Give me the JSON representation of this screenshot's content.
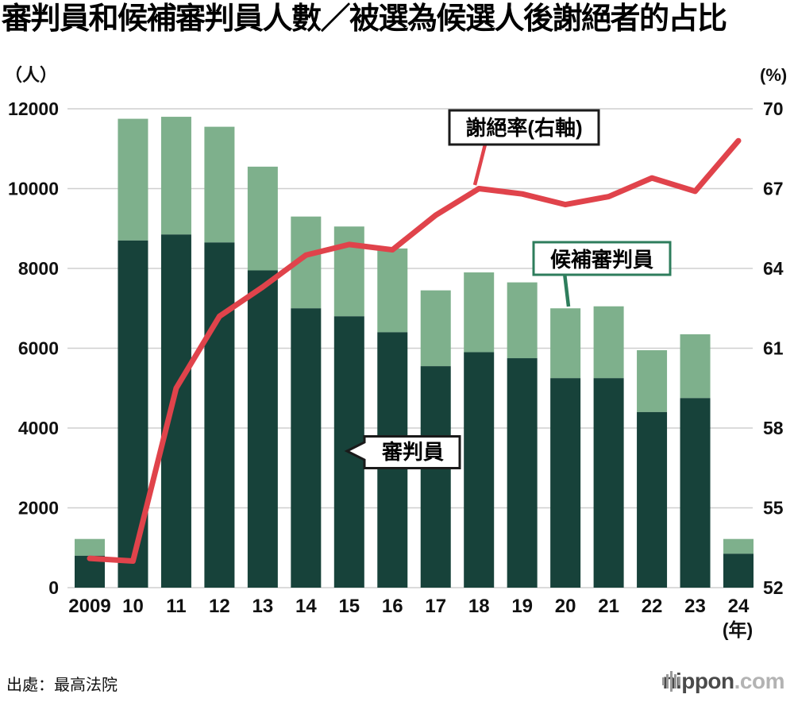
{
  "title": "審判員和候補審判員人數／被選為候選人後謝絕者的占比",
  "source": "出處：最高法院",
  "logo": {
    "name": "nippon",
    "tld": ".com"
  },
  "chart_data": {
    "type": "bar",
    "subtype": "stacked-bar-with-line",
    "categories": [
      "2009",
      "10",
      "11",
      "12",
      "13",
      "14",
      "15",
      "16",
      "17",
      "18",
      "19",
      "20",
      "21",
      "22",
      "23",
      "24"
    ],
    "x_axis_unit": "(年)",
    "left_axis": {
      "label": "（人）",
      "min": 0,
      "max": 12000,
      "step": 2000,
      "ticks": [
        "0",
        "2000",
        "4000",
        "6000",
        "8000",
        "10000",
        "12000"
      ]
    },
    "right_axis": {
      "label": "(%)",
      "min": 52,
      "max": 70,
      "step": 3,
      "ticks": [
        "52",
        "55",
        "58",
        "61",
        "64",
        "67",
        "70"
      ]
    },
    "grid": true,
    "gridline_color": "#cfcfcf",
    "series": [
      {
        "name": "審判員",
        "type": "bar",
        "stack": true,
        "color": "#17423a",
        "values": [
          800,
          8700,
          8850,
          8650,
          7950,
          7000,
          6800,
          6400,
          5550,
          5900,
          5750,
          5250,
          5250,
          4400,
          4750,
          850
        ]
      },
      {
        "name": "候補審判員",
        "type": "bar",
        "stack": true,
        "color": "#7eb08c",
        "values": [
          420,
          3050,
          2950,
          2900,
          2600,
          2300,
          2250,
          2100,
          1900,
          2000,
          1900,
          1750,
          1800,
          1550,
          1600,
          370
        ]
      },
      {
        "name": "謝絕率(右軸)",
        "type": "line",
        "axis": "right",
        "color": "#e0434b",
        "values": [
          53.1,
          53.0,
          59.5,
          62.2,
          63.3,
          64.5,
          64.9,
          64.7,
          66.0,
          67.0,
          66.8,
          66.4,
          66.7,
          67.4,
          66.9,
          68.8
        ]
      }
    ],
    "annotations": [
      {
        "label": "謝絕率(右軸)",
        "border_color": "#1a1a1a",
        "pointer_color": "#e0434b"
      },
      {
        "label": "候補審判員",
        "border_color": "#2e7d5c",
        "pointer_color": "#2e7d5c"
      },
      {
        "label": "審判員",
        "border_color": "#1a1a1a",
        "pointer_color": "#1a1a1a"
      }
    ]
  }
}
